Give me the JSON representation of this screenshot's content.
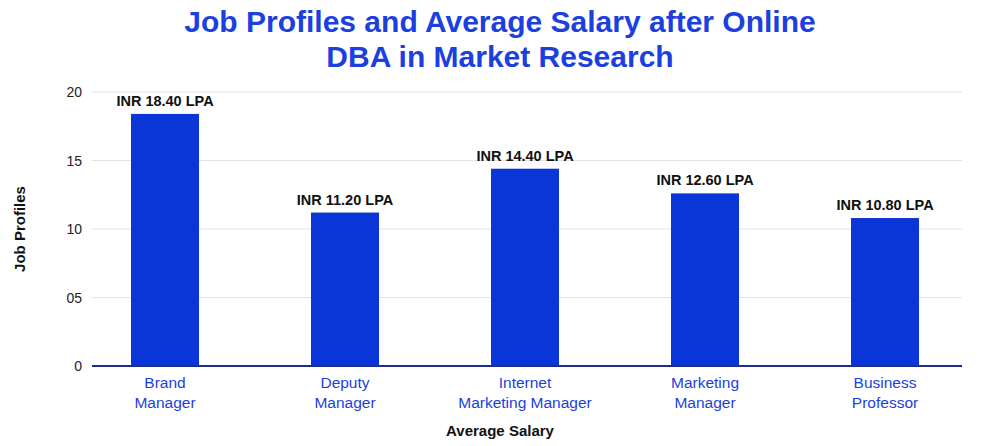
{
  "chart_data": {
    "type": "bar",
    "title": "Job Profiles and Average Salary after Online DBA in Market Research",
    "x_label": "Average Salary",
    "y_label": "Job Profiles",
    "categories": [
      "Brand Manager",
      "Deputy Manager",
      "Internet Marketing Manager",
      "Marketing Manager",
      "Business Professor"
    ],
    "values": [
      18.4,
      11.2,
      14.4,
      12.6,
      10.8
    ],
    "value_labels": [
      "INR 18.40 LPA",
      "INR 11.20 LPA",
      "INR 14.40 LPA",
      "INR 12.60 LPA",
      "INR 10.80 LPA"
    ],
    "color": "#0a36d8",
    "ylim": [
      0,
      20
    ],
    "yticks": [
      0,
      {
        "value": 5,
        "label": "05"
      },
      10,
      15,
      20
    ],
    "grid": true,
    "data_labels": true
  }
}
